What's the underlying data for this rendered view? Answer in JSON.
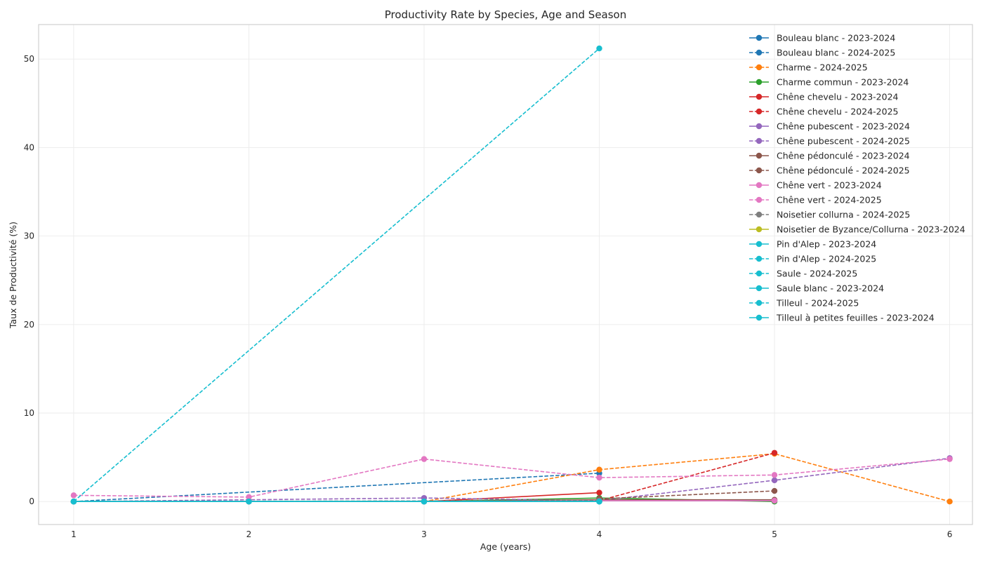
{
  "chart_data": {
    "type": "line",
    "title": "Productivity Rate by Species, Age and Season",
    "xlabel": "Age (years)",
    "ylabel": "Taux de Productivité (%)",
    "xlim": [
      0.8,
      6.13
    ],
    "ylim": [
      -2.6,
      53.9
    ],
    "x_ticks": [
      1,
      2,
      3,
      4,
      5,
      6
    ],
    "y_ticks": [
      0,
      10,
      20,
      30,
      40,
      50
    ],
    "grid": true,
    "legend_position": "top-right",
    "series": [
      {
        "name": "Bouleau blanc - 2023-2024",
        "color": "#1f77b4",
        "style": "solid",
        "points": [
          [
            1,
            0.0
          ],
          [
            2,
            0.0
          ],
          [
            3,
            0.0
          ],
          [
            4,
            0.0
          ]
        ]
      },
      {
        "name": "Bouleau blanc - 2024-2025",
        "color": "#1f77b4",
        "style": "dashed",
        "points": [
          [
            1,
            0.0
          ],
          [
            4,
            3.2
          ]
        ]
      },
      {
        "name": "Charme - 2024-2025",
        "color": "#ff7f0e",
        "style": "dashed",
        "points": [
          [
            3,
            0.0
          ],
          [
            4,
            3.6
          ],
          [
            5,
            5.4
          ],
          [
            6,
            0.0
          ]
        ]
      },
      {
        "name": "Charme commun - 2023-2024",
        "color": "#2ca02c",
        "style": "solid",
        "points": [
          [
            1,
            0.0
          ],
          [
            2,
            0.0
          ],
          [
            3,
            0.0
          ],
          [
            4,
            0.4
          ],
          [
            5,
            0.0
          ]
        ]
      },
      {
        "name": "Chêne chevelu - 2023-2024",
        "color": "#d62728",
        "style": "solid",
        "points": [
          [
            1,
            0.0
          ],
          [
            2,
            0.0
          ],
          [
            3,
            0.0
          ],
          [
            4,
            1.0
          ]
        ]
      },
      {
        "name": "Chêne chevelu - 2024-2025",
        "color": "#d62728",
        "style": "dashed",
        "points": [
          [
            4,
            0.1
          ],
          [
            5,
            5.5
          ]
        ]
      },
      {
        "name": "Chêne pubescent - 2023-2024",
        "color": "#9467bd",
        "style": "solid",
        "points": [
          [
            1,
            0.0
          ],
          [
            2,
            0.0
          ],
          [
            3,
            0.0
          ],
          [
            4,
            0.1
          ],
          [
            5,
            0.1
          ]
        ]
      },
      {
        "name": "Chêne pubescent - 2024-2025",
        "color": "#9467bd",
        "style": "dashed",
        "points": [
          [
            1,
            0.0
          ],
          [
            3,
            0.4
          ],
          [
            4,
            0.1
          ],
          [
            5,
            2.4
          ],
          [
            6,
            4.9
          ]
        ]
      },
      {
        "name": "Chêne pédonculé - 2023-2024",
        "color": "#8c564b",
        "style": "solid",
        "points": [
          [
            1,
            0.0
          ],
          [
            2,
            0.0
          ],
          [
            3,
            0.0
          ],
          [
            4,
            0.2
          ],
          [
            5,
            0.2
          ]
        ]
      },
      {
        "name": "Chêne pédonculé - 2024-2025",
        "color": "#8c564b",
        "style": "dashed",
        "points": [
          [
            4,
            0.3
          ],
          [
            5,
            1.2
          ]
        ]
      },
      {
        "name": "Chêne vert - 2023-2024",
        "color": "#e377c2",
        "style": "solid",
        "points": [
          [
            1,
            0.0
          ],
          [
            2,
            0.0
          ],
          [
            3,
            0.0
          ],
          [
            4,
            0.1
          ],
          [
            5,
            0.1
          ]
        ]
      },
      {
        "name": "Chêne vert - 2024-2025",
        "color": "#e377c2",
        "style": "dashed",
        "points": [
          [
            1,
            0.7
          ],
          [
            2,
            0.5
          ],
          [
            3,
            4.8
          ],
          [
            4,
            2.7
          ],
          [
            5,
            3.0
          ],
          [
            6,
            4.8
          ]
        ]
      },
      {
        "name": "Noisetier collurna - 2024-2025",
        "color": "#7f7f7f",
        "style": "dashed",
        "points": [
          [
            1,
            0.0
          ],
          [
            4,
            0.1
          ]
        ]
      },
      {
        "name": "Noisetier de Byzance/Collurna - 2023-2024",
        "color": "#bcbd22",
        "style": "solid",
        "points": [
          [
            1,
            0.0
          ],
          [
            2,
            0.0
          ],
          [
            3,
            0.0
          ],
          [
            4,
            0.0
          ]
        ]
      },
      {
        "name": "Pin d'Alep - 2023-2024",
        "color": "#17becf",
        "style": "solid",
        "points": [
          [
            1,
            0.0
          ],
          [
            2,
            0.0
          ],
          [
            3,
            0.0
          ],
          [
            4,
            0.0
          ]
        ]
      },
      {
        "name": "Pin d'Alep - 2024-2025",
        "color": "#17becf",
        "style": "dashed",
        "points": [
          [
            1,
            0.0
          ],
          [
            3,
            0.0
          ],
          [
            4,
            0.0
          ]
        ]
      },
      {
        "name": "Saule - 2024-2025",
        "color": "#17becf",
        "style": "dashed",
        "points": [
          [
            1,
            0.0
          ],
          [
            4,
            51.2
          ]
        ]
      },
      {
        "name": "Saule blanc - 2023-2024",
        "color": "#17becf",
        "style": "solid",
        "points": [
          [
            1,
            0.0
          ],
          [
            2,
            0.0
          ],
          [
            3,
            0.0
          ],
          [
            4,
            0.0
          ]
        ]
      },
      {
        "name": "Tilleul - 2024-2025",
        "color": "#17becf",
        "style": "dashed",
        "points": [
          [
            1,
            0.0
          ],
          [
            4,
            0.0
          ]
        ]
      },
      {
        "name": "Tilleul à petites feuilles - 2023-2024",
        "color": "#17becf",
        "style": "solid",
        "points": [
          [
            1,
            0.0
          ],
          [
            2,
            0.0
          ],
          [
            3,
            0.0
          ],
          [
            4,
            0.0
          ]
        ]
      }
    ]
  }
}
